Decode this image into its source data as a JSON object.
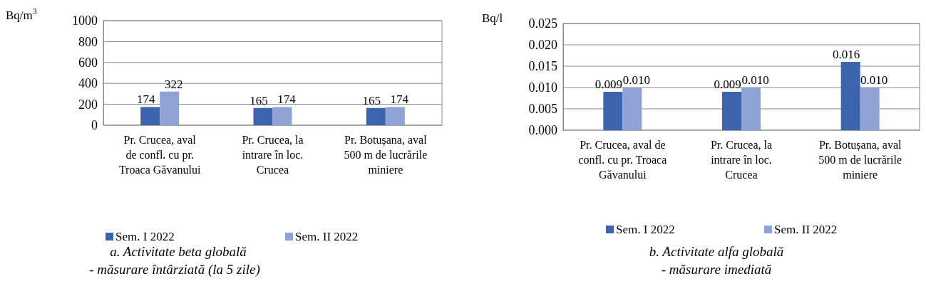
{
  "chart_data": [
    {
      "type": "bar",
      "title": "a. Activitate beta globală",
      "subtitle": "- măsurare întârziată (la 5 zile)",
      "ylabel": "Bq/m$^{3}$",
      "categories": [
        "Pr. Crucea, aval de confl. cu pr. Troaca Găvanului",
        "Pr. Crucea, la intrare în loc. Crucea",
        "Pr. Botușana, aval 500 m de lucrările miniere"
      ],
      "series": [
        {
          "name": "Sem. I 2022",
          "color": "#3c64ae",
          "values": [
            174,
            165,
            165
          ]
        },
        {
          "name": "Sem. II 2022",
          "color": "#8fa3d4",
          "values": [
            322,
            174,
            174
          ]
        }
      ],
      "ylim": [
        0,
        1000
      ],
      "yticks": [
        0,
        200,
        400,
        600,
        800,
        1000
      ],
      "grid": "y",
      "legend": "bottom",
      "data_labels": true
    },
    {
      "type": "bar",
      "title": "b. Activitate alfa globală",
      "subtitle": "- măsurare imediată",
      "ylabel": "Bq/l",
      "categories": [
        "Pr. Crucea, aval de confl. cu pr. Troaca Găvanului",
        "Pr. Crucea, la intrare în loc. Crucea",
        "Pr. Botușana, aval 500 m de lucrările miniere"
      ],
      "series": [
        {
          "name": "Sem. I 2022",
          "color": "#3c64ae",
          "values": [
            0.009,
            0.009,
            0.016
          ]
        },
        {
          "name": "Sem. II 2022",
          "color": "#8fa3d4",
          "values": [
            0.01,
            0.01,
            0.01
          ]
        }
      ],
      "ylim": [
        0,
        0.025
      ],
      "yticks": [
        {
          "value": 0,
          "label": "0.000"
        },
        {
          "value": 0.005,
          "label": "0.005"
        },
        {
          "value": 0.01,
          "label": "0.010"
        },
        {
          "value": 0.015,
          "label": "0.015"
        },
        {
          "value": 0.02,
          "label": "0.020"
        },
        {
          "value": 0.025,
          "label": "0.025"
        }
      ],
      "grid": "y",
      "legend": "bottom",
      "value_labels": [
        [
          "0.009",
          "0.009",
          "0.016"
        ],
        [
          "0.010",
          "0.010",
          "0.010"
        ]
      ]
    }
  ]
}
